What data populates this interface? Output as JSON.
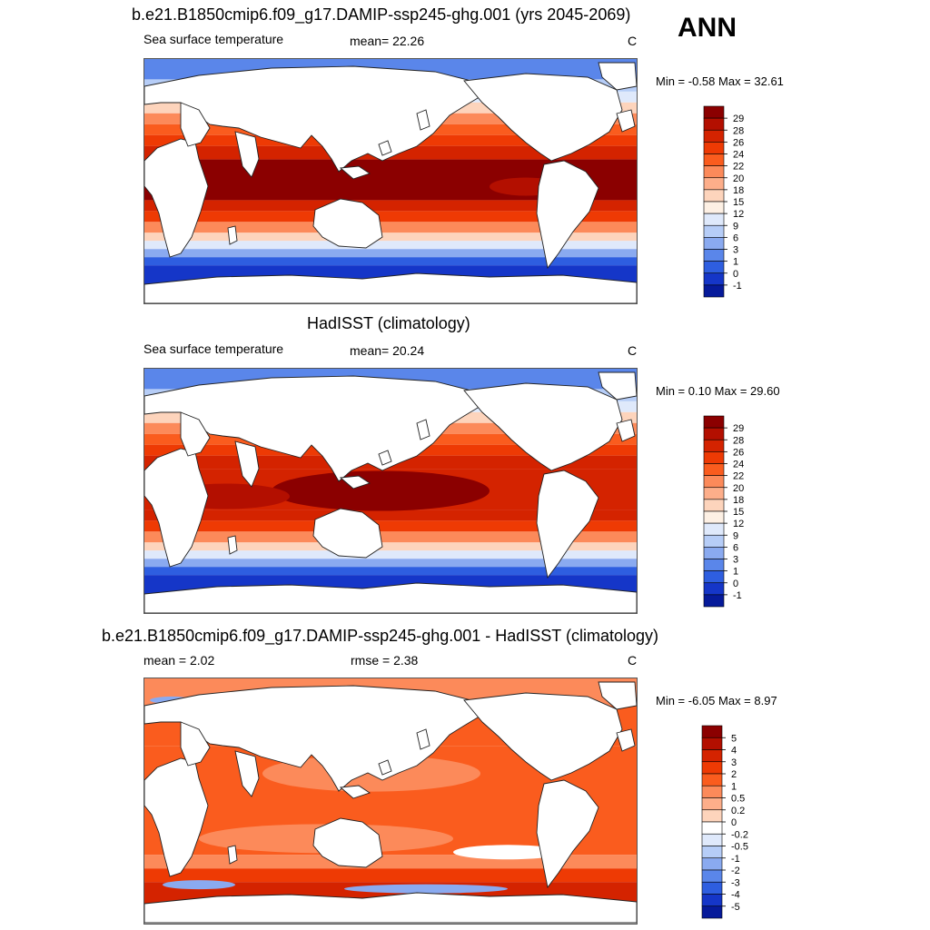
{
  "season": "ANN",
  "panels": [
    {
      "title": "b.e21.B1850cmip6.f09_g17.DAMIP-ssp245-ghg.001 (yrs 2045-2069)",
      "left_label": "Sea surface temperature",
      "center_label": "mean=  22.26",
      "units": "C",
      "minmax": "Min =  -0.58 Max =  32.61",
      "colorbar": {
        "labels": [
          "29",
          "28",
          "26",
          "24",
          "22",
          "20",
          "18",
          "15",
          "12",
          "9",
          "6",
          "3",
          "1",
          "0",
          "-1"
        ],
        "colors": [
          "#8b0000",
          "#b30f00",
          "#d42300",
          "#ee3a04",
          "#fa5c1e",
          "#fc8a5a",
          "#fdae8a",
          "#fdd4bc",
          "#fdf0e4",
          "#dfe9fb",
          "#b6cdf7",
          "#8aaaf0",
          "#5a86ea",
          "#2e5ee0",
          "#1536c8",
          "#061a9a"
        ]
      }
    },
    {
      "title": "HadISST (climatology)",
      "left_label": "Sea surface temperature",
      "center_label": "mean=  20.24",
      "units": "C",
      "minmax": "Min =   0.10 Max =  29.60",
      "colorbar": {
        "labels": [
          "29",
          "28",
          "26",
          "24",
          "22",
          "20",
          "18",
          "15",
          "12",
          "9",
          "6",
          "3",
          "1",
          "0",
          "-1"
        ],
        "colors": [
          "#8b0000",
          "#b30f00",
          "#d42300",
          "#ee3a04",
          "#fa5c1e",
          "#fc8a5a",
          "#fdae8a",
          "#fdd4bc",
          "#fdf0e4",
          "#dfe9fb",
          "#b6cdf7",
          "#8aaaf0",
          "#5a86ea",
          "#2e5ee0",
          "#1536c8",
          "#061a9a"
        ]
      }
    },
    {
      "title": "b.e21.B1850cmip6.f09_g17.DAMIP-ssp245-ghg.001 - HadISST (climatology)",
      "left_label": "mean =   2.02",
      "center_label": "rmse =   2.38",
      "units": "C",
      "minmax": "Min =  -6.05 Max =   8.97",
      "colorbar": {
        "labels": [
          "5",
          "4",
          "3",
          "2",
          "1",
          "0.5",
          "0.2",
          "0",
          "-0.2",
          "-0.5",
          "-1",
          "-2",
          "-3",
          "-4",
          "-5"
        ],
        "colors": [
          "#8b0000",
          "#b30f00",
          "#d42300",
          "#ee3a04",
          "#fa5c1e",
          "#fc8a5a",
          "#fdae8a",
          "#fdd4bc",
          "#ffffff",
          "#dfe9fb",
          "#b6cdf7",
          "#8aaaf0",
          "#5a86ea",
          "#2e5ee0",
          "#1536c8",
          "#061a9a"
        ]
      }
    }
  ]
}
